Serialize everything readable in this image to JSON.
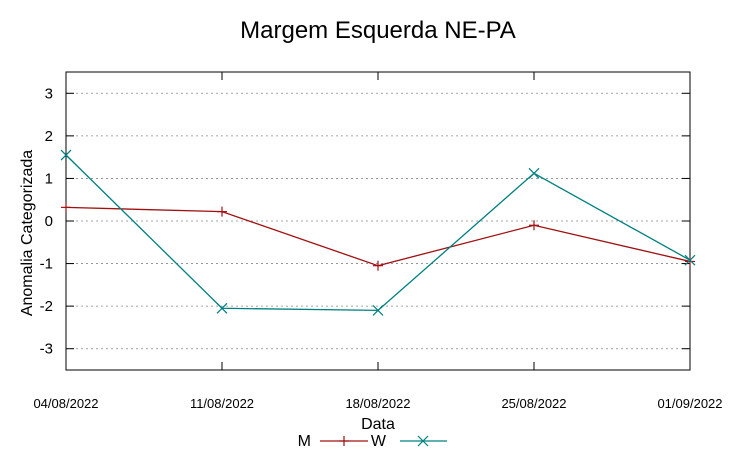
{
  "chart_data": {
    "type": "line",
    "title": "Margem Esquerda NE-PA",
    "xlabel": "Data",
    "ylabel": "Anomalia Categorizada",
    "categories": [
      "04/08/2022",
      "11/08/2022",
      "18/08/2022",
      "25/08/2022",
      "01/09/2022"
    ],
    "ylim": [
      -3.5,
      3.5
    ],
    "yticks": [
      3,
      2,
      1,
      0,
      -1,
      -2,
      -3
    ],
    "ytick_labels": [
      "3",
      "2",
      "1",
      "0",
      "-1",
      "-2",
      "-3"
    ],
    "grid": true,
    "legend_position": "bottom-center",
    "series": [
      {
        "name": "M",
        "color": "#a01010",
        "marker": "plus",
        "values": [
          0.32,
          0.22,
          -1.05,
          -0.1,
          -0.95
        ]
      },
      {
        "name": "W",
        "color": "#008080",
        "marker": "cross",
        "values": [
          1.55,
          -2.05,
          -2.1,
          1.12,
          -0.92
        ]
      }
    ]
  }
}
